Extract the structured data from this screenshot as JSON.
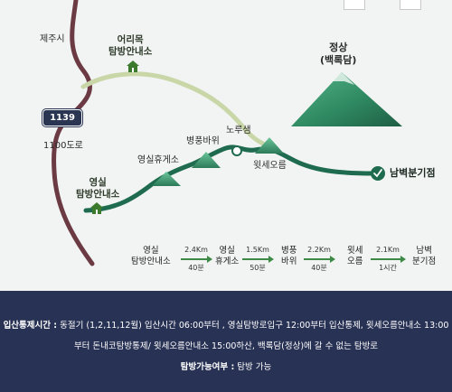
{
  "map": {
    "labels": {
      "jeju_city": "제주시",
      "road_number": "1139",
      "road_1100": "1100도로",
      "eorimok_shelter": "어리목\n탐방안내소",
      "yeongsil_shelter": "영실\n탐방안내소",
      "yeongsil_rest": "영실휴게소",
      "byeongpung_rock": "병풍바위",
      "noru_spring": "노루샘",
      "witse_oreum": "윗세오름",
      "summit": "정상\n(백록담)",
      "nambyeok": "남벽분기점"
    },
    "colors": {
      "trail": "#1f6b4f",
      "road": "#6b3a43",
      "light_trail": "#c9d7a8",
      "mountain": "#2f8a62",
      "panel": "#283254"
    }
  },
  "flow": {
    "nodes": [
      "영실\n탐방안내소",
      "영실\n휴게소",
      "병풍\n바위",
      "윗세\n오름",
      "남벽\n분기점"
    ],
    "segments": [
      {
        "distance": "2.4Km",
        "time": "40분"
      },
      {
        "distance": "1.5Km",
        "time": "50분"
      },
      {
        "distance": "2.2Km",
        "time": "40분"
      },
      {
        "distance": "2.1Km",
        "time": "1시간"
      }
    ]
  },
  "info": {
    "control_label": "입산통제시간 :",
    "control_text_1": "동절기 (1,2,11,12월) 입산시간 06:00부터 , 영실탐방로입구 12:00부터 입산통제, 윗세오름안내소 13:00",
    "control_text_2": "부터 돈내코탐방통제/ 윗세오름안내소 15:00하산, 백록담(정상)에 갈 수 없는 탐방로",
    "availability_label": "탐방가능여부 :",
    "availability_value": "탐방 가능"
  }
}
